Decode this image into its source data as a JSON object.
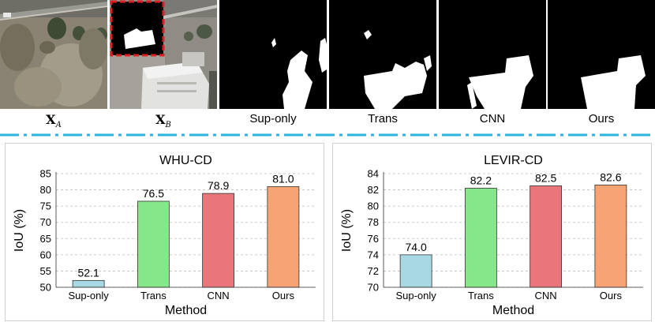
{
  "top_row": {
    "captions": [
      {
        "main": "X",
        "sub": "A"
      },
      {
        "main": "X",
        "sub": "B"
      },
      {
        "text": "Sup-only"
      },
      {
        "text": "Trans"
      },
      {
        "text": "CNN"
      },
      {
        "text": "Ours"
      }
    ]
  },
  "colors": {
    "dashed_divider": "#2ab3dc",
    "crop_outline": "#e02020",
    "bars": [
      "#a8d8e3",
      "#86e68a",
      "#e8767a",
      "#f7a373"
    ],
    "grid": "#bdbdbd"
  },
  "chart_data": [
    {
      "type": "bar",
      "title": "WHU-CD",
      "xlabel": "Method",
      "ylabel": "IoU (%)",
      "categories": [
        "Sup-only",
        "Trans",
        "CNN",
        "Ours"
      ],
      "values": [
        52.1,
        76.5,
        78.9,
        81.0
      ],
      "value_labels": [
        "52.1",
        "76.5",
        "78.9",
        "81.0"
      ],
      "ylim": [
        50,
        85
      ],
      "yticks": [
        "50",
        "55",
        "60",
        "65",
        "70",
        "75",
        "80",
        "85"
      ],
      "grid": "horizontal dashed",
      "legend": "none"
    },
    {
      "type": "bar",
      "title": "LEVIR-CD",
      "xlabel": "Method",
      "ylabel": "IoU (%)",
      "categories": [
        "Sup-only",
        "Trans",
        "CNN",
        "Ours"
      ],
      "values": [
        74.0,
        82.2,
        82.5,
        82.6
      ],
      "value_labels": [
        "74.0",
        "82.2",
        "82.5",
        "82.6"
      ],
      "ylim": [
        70,
        84
      ],
      "yticks": [
        "70",
        "72",
        "74",
        "76",
        "78",
        "80",
        "82",
        "84"
      ],
      "grid": "horizontal dashed",
      "legend": "none"
    }
  ]
}
